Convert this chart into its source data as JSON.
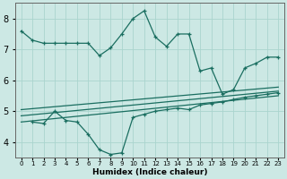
{
  "title": "",
  "xlabel": "Humidex (Indice chaleur)",
  "bg_color": "#cce8e4",
  "line_color": "#1a6e60",
  "grid_color": "#aad4ce",
  "series1_x": [
    0,
    1,
    2,
    3,
    4,
    5,
    6,
    7,
    8,
    9,
    10,
    11,
    12,
    13,
    14,
    15,
    16,
    17,
    18,
    19,
    20,
    21,
    22,
    23
  ],
  "series1_y": [
    7.6,
    7.3,
    7.2,
    7.2,
    7.2,
    7.2,
    7.2,
    6.8,
    7.05,
    7.5,
    8.0,
    8.25,
    7.4,
    7.1,
    7.5,
    7.5,
    6.3,
    6.4,
    5.55,
    5.7,
    6.4,
    6.55,
    6.75,
    6.75
  ],
  "series2_x": [
    1,
    2,
    3,
    4,
    5,
    6,
    7,
    8,
    9,
    10,
    11,
    12,
    13,
    14,
    15,
    16,
    17,
    18,
    19,
    20,
    21,
    22,
    23
  ],
  "series2_y": [
    4.65,
    4.6,
    5.0,
    4.7,
    4.65,
    4.25,
    3.75,
    3.6,
    3.65,
    4.8,
    4.9,
    5.0,
    5.05,
    5.1,
    5.05,
    5.2,
    5.25,
    5.3,
    5.38,
    5.45,
    5.5,
    5.55,
    5.6
  ],
  "line1_x": [
    0,
    23
  ],
  "line1_y": [
    4.65,
    5.5
  ],
  "line2_x": [
    0,
    23
  ],
  "line2_y": [
    4.85,
    5.65
  ],
  "line3_x": [
    0,
    23
  ],
  "line3_y": [
    5.05,
    5.78
  ],
  "ylim": [
    3.5,
    8.5
  ],
  "xlim": [
    0,
    23
  ],
  "yticks": [
    4,
    5,
    6,
    7,
    8
  ],
  "xtick_labels": [
    "0",
    "1",
    "2",
    "3",
    "4",
    "5",
    "6",
    "7",
    "8",
    "9",
    "10",
    "11",
    "12",
    "13",
    "14",
    "15",
    "16",
    "17",
    "18",
    "19",
    "20",
    "21",
    "22",
    "23"
  ]
}
